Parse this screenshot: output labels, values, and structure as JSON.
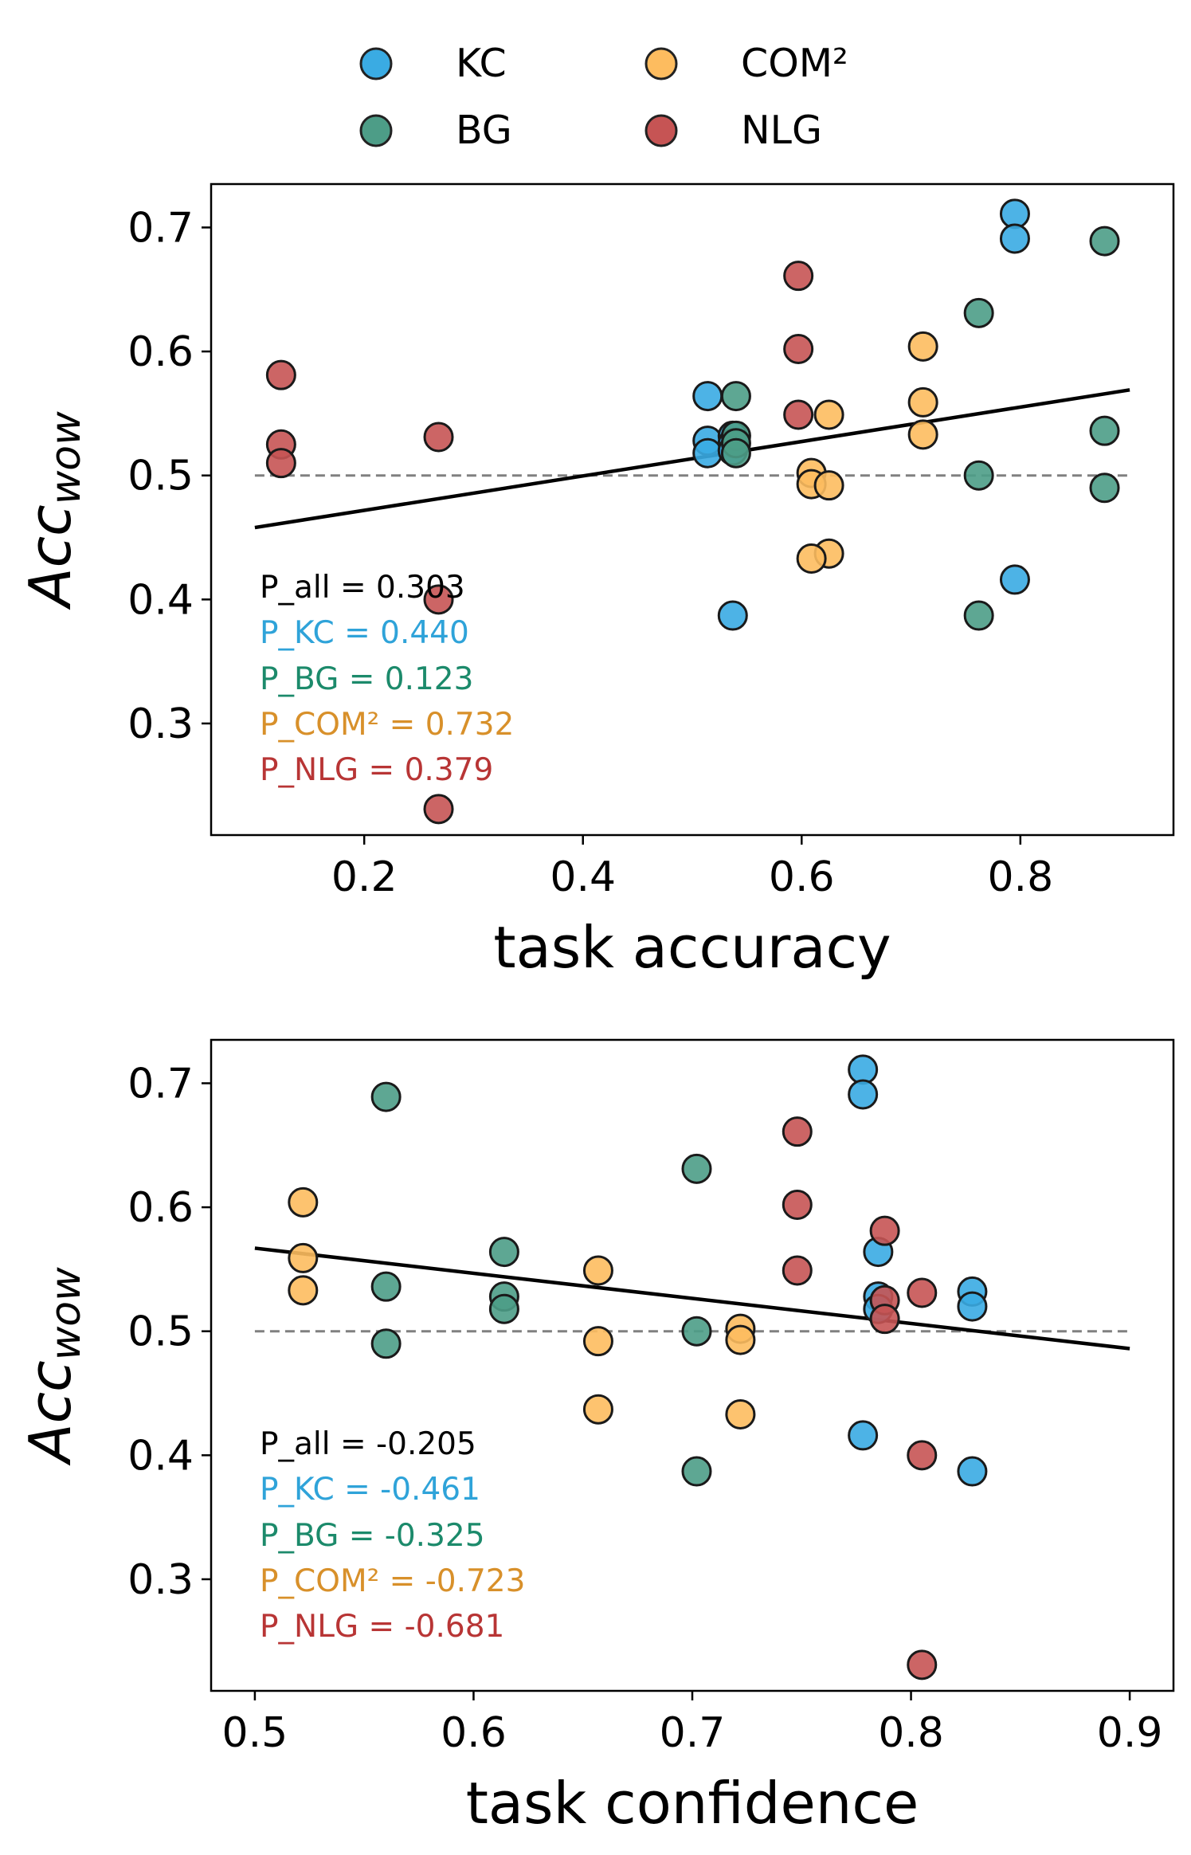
{
  "series_colors": {
    "KC": "#3aabe3",
    "BG": "#4d9d87",
    "COM²": "#fdbc5f",
    "NLG": "#c65454"
  },
  "legend": {
    "entries": [
      "KC",
      "BG",
      "COM²",
      "NLG"
    ]
  },
  "chart_data": [
    {
      "type": "scatter",
      "xlabel": "task accuracy",
      "ylabel_main": "Acc",
      "ylabel_sub": "wow",
      "xlim": [
        0.06,
        0.94
      ],
      "ylim": [
        0.21,
        0.735
      ],
      "xticks": [
        "0.2",
        "0.4",
        "0.6",
        "0.8"
      ],
      "xtick_values": [
        0.2,
        0.4,
        0.6,
        0.8
      ],
      "yticks": [
        "0.3",
        "0.4",
        "0.5",
        "0.6",
        "0.7"
      ],
      "ytick_values": [
        0.3,
        0.4,
        0.5,
        0.6,
        0.7
      ],
      "baseline": 0.5,
      "fit_line": {
        "x": [
          0.1,
          0.9
        ],
        "y": [
          0.458,
          0.569
        ]
      },
      "series": [
        {
          "name": "KC",
          "color": "#3aabe3",
          "points": [
            [
              0.795,
              0.711
            ],
            [
              0.795,
              0.691
            ],
            [
              0.514,
              0.564
            ],
            [
              0.514,
              0.528
            ],
            [
              0.514,
              0.518
            ],
            [
              0.537,
              0.532
            ],
            [
              0.537,
              0.526
            ],
            [
              0.537,
              0.52
            ],
            [
              0.795,
              0.416
            ],
            [
              0.537,
              0.387
            ]
          ]
        },
        {
          "name": "BG",
          "color": "#4d9d87",
          "points": [
            [
              0.877,
              0.689
            ],
            [
              0.762,
              0.631
            ],
            [
              0.54,
              0.564
            ],
            [
              0.877,
              0.536
            ],
            [
              0.54,
              0.532
            ],
            [
              0.54,
              0.526
            ],
            [
              0.54,
              0.518
            ],
            [
              0.762,
              0.5
            ],
            [
              0.877,
              0.49
            ],
            [
              0.762,
              0.387
            ]
          ]
        },
        {
          "name": "COM²",
          "color": "#fdbc5f",
          "points": [
            [
              0.711,
              0.604
            ],
            [
              0.711,
              0.559
            ],
            [
              0.711,
              0.533
            ],
            [
              0.625,
              0.549
            ],
            [
              0.609,
              0.502
            ],
            [
              0.609,
              0.493
            ],
            [
              0.625,
              0.492
            ],
            [
              0.625,
              0.437
            ],
            [
              0.609,
              0.433
            ]
          ]
        },
        {
          "name": "NLG",
          "color": "#c65454",
          "points": [
            [
              0.597,
              0.661
            ],
            [
              0.597,
              0.602
            ],
            [
              0.597,
              0.549
            ],
            [
              0.124,
              0.581
            ],
            [
              0.124,
              0.525
            ],
            [
              0.124,
              0.51
            ],
            [
              0.268,
              0.531
            ],
            [
              0.268,
              0.4
            ],
            [
              0.268,
              0.231
            ]
          ]
        }
      ],
      "annotations": [
        {
          "text": "P_all = 0.303",
          "color": "#000000"
        },
        {
          "text": "P_KC = 0.440",
          "color": "#2fa3d9"
        },
        {
          "text": "P_BG = 0.123",
          "color": "#1c8a6b"
        },
        {
          "text": "P_COM² = 0.732",
          "color": "#d8902a"
        },
        {
          "text": "P_NLG = 0.379",
          "color": "#b83535"
        }
      ]
    },
    {
      "type": "scatter",
      "xlabel": "task confidence",
      "ylabel_main": "Acc",
      "ylabel_sub": "wow",
      "xlim": [
        0.48,
        0.92
      ],
      "ylim": [
        0.21,
        0.735
      ],
      "xticks": [
        "0.5",
        "0.6",
        "0.7",
        "0.8",
        "0.9"
      ],
      "xtick_values": [
        0.5,
        0.6,
        0.7,
        0.8,
        0.9
      ],
      "yticks": [
        "0.3",
        "0.4",
        "0.5",
        "0.6",
        "0.7"
      ],
      "ytick_values": [
        0.3,
        0.4,
        0.5,
        0.6,
        0.7
      ],
      "baseline": 0.5,
      "fit_line": {
        "x": [
          0.5,
          0.9
        ],
        "y": [
          0.567,
          0.486
        ]
      },
      "series": [
        {
          "name": "KC",
          "color": "#3aabe3",
          "points": [
            [
              0.778,
              0.711
            ],
            [
              0.778,
              0.691
            ],
            [
              0.785,
              0.564
            ],
            [
              0.785,
              0.528
            ],
            [
              0.785,
              0.518
            ],
            [
              0.828,
              0.532
            ],
            [
              0.828,
              0.52
            ],
            [
              0.778,
              0.416
            ],
            [
              0.828,
              0.387
            ]
          ]
        },
        {
          "name": "BG",
          "color": "#4d9d87",
          "points": [
            [
              0.56,
              0.689
            ],
            [
              0.702,
              0.631
            ],
            [
              0.614,
              0.564
            ],
            [
              0.56,
              0.536
            ],
            [
              0.614,
              0.528
            ],
            [
              0.614,
              0.518
            ],
            [
              0.56,
              0.49
            ],
            [
              0.702,
              0.5
            ],
            [
              0.702,
              0.387
            ]
          ]
        },
        {
          "name": "COM²",
          "color": "#fdbc5f",
          "points": [
            [
              0.522,
              0.604
            ],
            [
              0.522,
              0.559
            ],
            [
              0.522,
              0.533
            ],
            [
              0.657,
              0.549
            ],
            [
              0.657,
              0.492
            ],
            [
              0.657,
              0.437
            ],
            [
              0.722,
              0.502
            ],
            [
              0.722,
              0.493
            ],
            [
              0.722,
              0.433
            ]
          ]
        },
        {
          "name": "NLG",
          "color": "#c65454",
          "points": [
            [
              0.748,
              0.661
            ],
            [
              0.748,
              0.602
            ],
            [
              0.748,
              0.549
            ],
            [
              0.788,
              0.581
            ],
            [
              0.788,
              0.525
            ],
            [
              0.788,
              0.51
            ],
            [
              0.805,
              0.531
            ],
            [
              0.805,
              0.4
            ],
            [
              0.805,
              0.231
            ]
          ]
        }
      ],
      "annotations": [
        {
          "text": "P_all = -0.205",
          "color": "#000000"
        },
        {
          "text": "P_KC = -0.461",
          "color": "#2fa3d9"
        },
        {
          "text": "P_BG = -0.325",
          "color": "#1c8a6b"
        },
        {
          "text": "P_COM² = -0.723",
          "color": "#d8902a"
        },
        {
          "text": "P_NLG = -0.681",
          "color": "#b83535"
        }
      ]
    }
  ]
}
